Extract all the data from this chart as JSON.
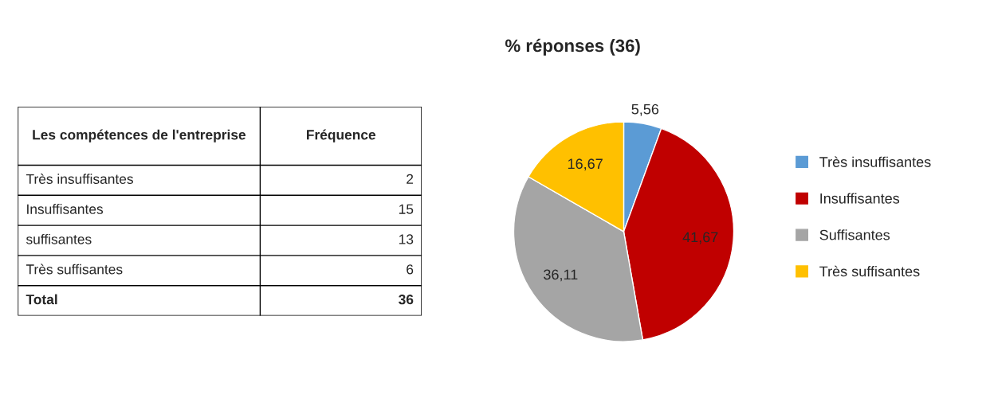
{
  "chart_data": [
    {
      "type": "other",
      "annotations": [
        "Les compétences de l'entreprise",
        "Fréquence"
      ],
      "categories": [
        "Très insuffisantes",
        "Insuffisantes",
        "suffisantes",
        "Très suffisantes",
        "Total"
      ],
      "values": [
        2,
        15,
        13,
        6,
        36
      ],
      "value_labels": [
        "2",
        "15",
        "13",
        "6",
        "36"
      ]
    },
    {
      "type": "pie",
      "title": "% réponses (36)",
      "categories": [
        "Très insuffisantes",
        "Insuffisantes",
        "Suffisantes",
        "Très suffisantes"
      ],
      "values": [
        5.56,
        41.67,
        36.11,
        16.67
      ],
      "colors": [
        "#5b9bd5",
        "#c00000",
        "#a5a5a5",
        "#ffc000"
      ],
      "value_labels": [
        "5,56",
        "41,67",
        "36,11",
        "16,67"
      ],
      "legend": "right"
    }
  ]
}
